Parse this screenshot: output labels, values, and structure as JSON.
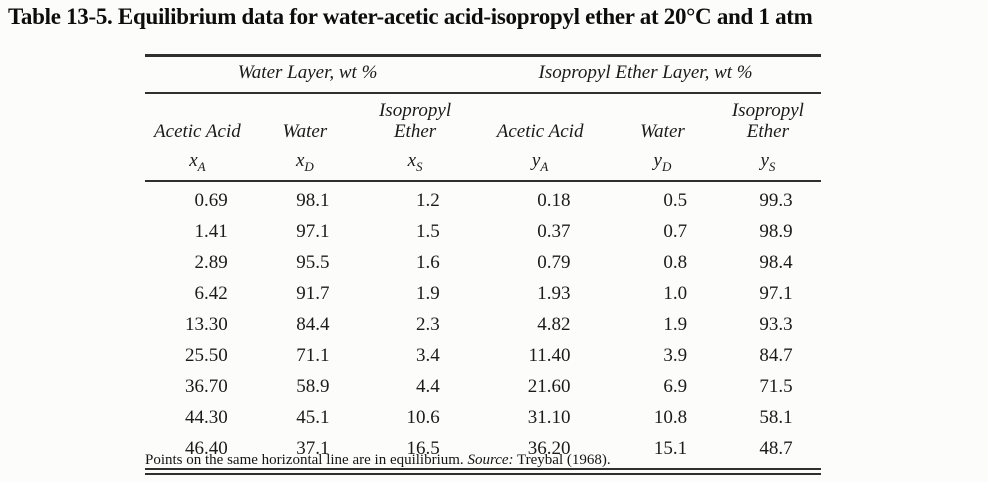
{
  "page": {
    "title": "Table 13-5. Equilibrium data for water-acetic acid-isopropyl ether at 20°C and 1 atm",
    "footnote_text": "Points on the same horizontal line are in equilibrium.",
    "footnote_source_label": "Source:",
    "footnote_source_ref": "Treybal (1968)."
  },
  "table": {
    "groups": [
      {
        "label": "Water Layer, wt %"
      },
      {
        "label": "Isopropyl Ether Layer, wt %"
      }
    ],
    "columns": [
      {
        "line1": "",
        "line2": "Acetic Acid",
        "symbol_base": "x",
        "symbol_sub": "A"
      },
      {
        "line1": "",
        "line2": "Water",
        "symbol_base": "x",
        "symbol_sub": "D"
      },
      {
        "line1": "Isopropyl",
        "line2": "Ether",
        "symbol_base": "x",
        "symbol_sub": "S"
      },
      {
        "line1": "",
        "line2": "Acetic Acid",
        "symbol_base": "y",
        "symbol_sub": "A"
      },
      {
        "line1": "",
        "line2": "Water",
        "symbol_base": "y",
        "symbol_sub": "D"
      },
      {
        "line1": "Isopropyl",
        "line2": "Ether",
        "symbol_base": "y",
        "symbol_sub": "S"
      }
    ],
    "rows": [
      [
        "0.69",
        "98.1",
        "1.2",
        "0.18",
        "0.5",
        "99.3"
      ],
      [
        "1.41",
        "97.1",
        "1.5",
        "0.37",
        "0.7",
        "98.9"
      ],
      [
        "2.89",
        "95.5",
        "1.6",
        "0.79",
        "0.8",
        "98.4"
      ],
      [
        "6.42",
        "91.7",
        "1.9",
        "1.93",
        "1.0",
        "97.1"
      ],
      [
        "13.30",
        "84.4",
        "2.3",
        "4.82",
        "1.9",
        "93.3"
      ],
      [
        "25.50",
        "71.1",
        "3.4",
        "11.40",
        "3.9",
        "84.7"
      ],
      [
        "36.70",
        "58.9",
        "4.4",
        "21.60",
        "6.9",
        "71.5"
      ],
      [
        "44.30",
        "45.1",
        "10.6",
        "31.10",
        "10.8",
        "58.1"
      ],
      [
        "46.40",
        "37.1",
        "16.5",
        "36.20",
        "15.1",
        "48.7"
      ]
    ]
  },
  "colors": {
    "background": "#fcfcfb",
    "text": "#1b1b1b",
    "rule": "#2f2f2f"
  }
}
